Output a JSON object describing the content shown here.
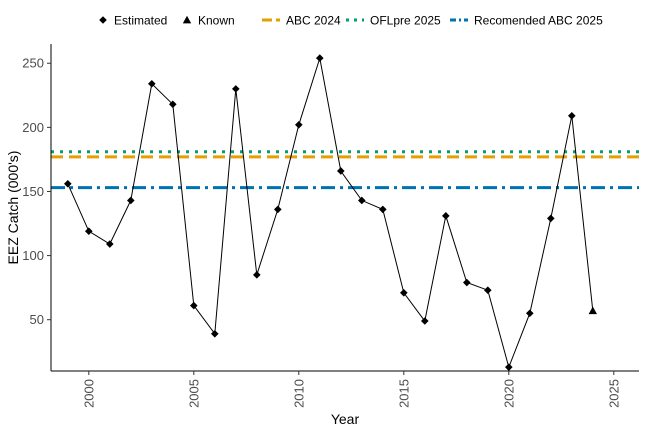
{
  "chart_data": {
    "type": "line",
    "xlabel": "Year",
    "ylabel": "EEZ Catch (000's)",
    "xlim": [
      1998.2,
      2026.2
    ],
    "ylim": [
      10,
      265
    ],
    "x_ticks": [
      2000,
      2005,
      2010,
      2015,
      2020,
      2025
    ],
    "y_ticks": [
      50,
      100,
      150,
      200,
      250
    ],
    "grid": false,
    "legend_position": "top",
    "series": [
      {
        "name": "Estimated",
        "marker": "diamond",
        "color": "#000000",
        "x": [
          1999,
          2000,
          2001,
          2002,
          2003,
          2004,
          2005,
          2006,
          2007,
          2008,
          2009,
          2010,
          2011,
          2012,
          2013,
          2014,
          2015,
          2016,
          2017,
          2018,
          2019,
          2020,
          2021,
          2022,
          2023
        ],
        "values": [
          156,
          119,
          109,
          143,
          234,
          218,
          61,
          39,
          230,
          85,
          136,
          202,
          254,
          166,
          143,
          136,
          71,
          49,
          131,
          79,
          73,
          13,
          55,
          129,
          209
        ]
      },
      {
        "name": "Known",
        "marker": "triangle",
        "color": "#000000",
        "x": [
          2024
        ],
        "values": [
          57
        ]
      }
    ],
    "reference_lines": [
      {
        "name": "ABC 2024",
        "value": 177,
        "color": "#E69F00",
        "dash": "dashed"
      },
      {
        "name": "OFLpre 2025",
        "value": 181,
        "color": "#009E73",
        "dash": "dotted"
      },
      {
        "name": "Recomended ABC 2025",
        "value": 153,
        "color": "#0072B2",
        "dash": "dotdash"
      }
    ]
  }
}
